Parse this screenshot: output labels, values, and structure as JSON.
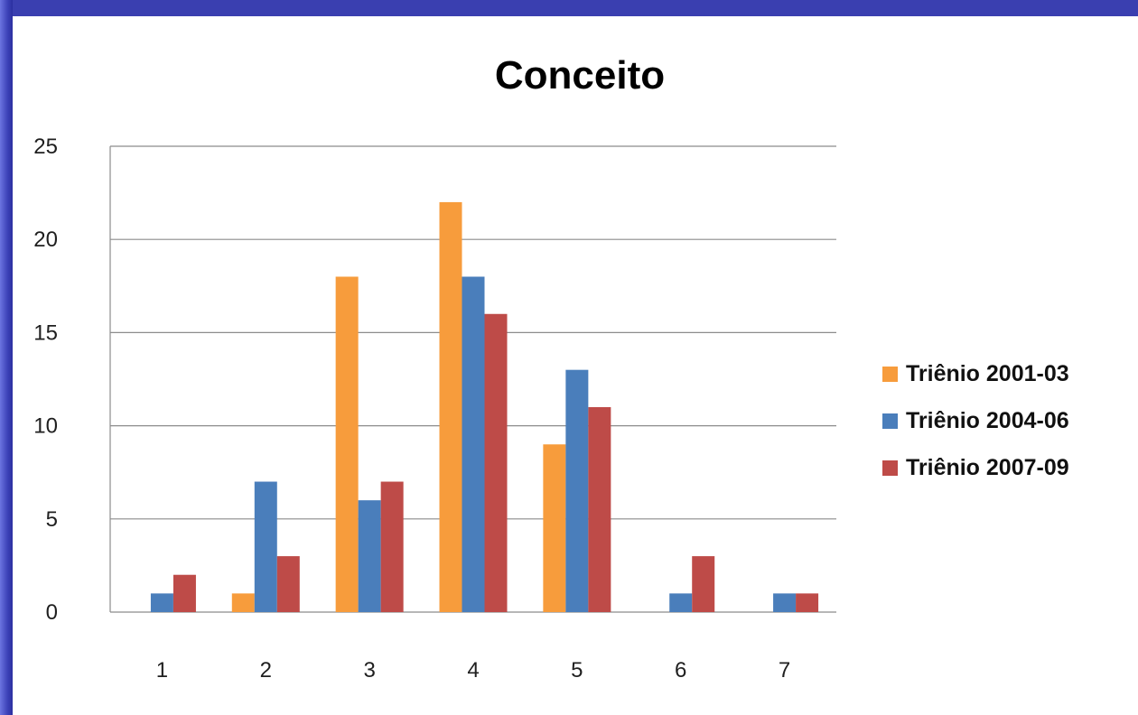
{
  "chart_data": {
    "type": "bar",
    "title": "Conceito",
    "xlabel": "",
    "ylabel": "",
    "categories": [
      "1",
      "2",
      "3",
      "4",
      "5",
      "6",
      "7"
    ],
    "ylim": [
      0,
      25
    ],
    "yticks": [
      "0",
      "5",
      "10",
      "15",
      "20",
      "25"
    ],
    "grid": true,
    "legend_position": "right",
    "series": [
      {
        "name": "Triênio 2001-03",
        "color": "#f79c3c",
        "values": [
          0,
          1,
          18,
          22,
          9,
          0,
          0
        ]
      },
      {
        "name": "Triênio 2004-06",
        "color": "#4a7ebb",
        "values": [
          1,
          7,
          6,
          18,
          13,
          1,
          1
        ]
      },
      {
        "name": "Triênio 2007-09",
        "color": "#be4b48",
        "values": [
          2,
          3,
          7,
          16,
          11,
          3,
          1
        ]
      }
    ]
  }
}
